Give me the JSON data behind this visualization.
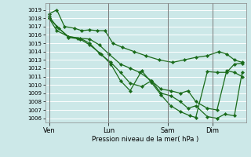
{
  "background_color": "#cce8e8",
  "grid_color": "#ffffff",
  "line_color": "#1a6b1a",
  "marker_color": "#1a6b1a",
  "xlabel": "Pression niveau de la mer( hPa )",
  "ylim": [
    1005.5,
    1019.8
  ],
  "yticks": [
    1006,
    1007,
    1008,
    1009,
    1010,
    1011,
    1012,
    1013,
    1014,
    1015,
    1016,
    1017,
    1018,
    1019
  ],
  "day_labels": [
    "Ven",
    "Lun",
    "Sam",
    "Dim"
  ],
  "day_positions": [
    0.0,
    0.308,
    0.615,
    0.846
  ],
  "vline_color": "#666666",
  "series": [
    {
      "x": [
        0.0,
        0.04,
        0.08,
        0.13,
        0.17,
        0.21,
        0.25,
        0.29,
        0.33,
        0.38,
        0.44,
        0.5,
        0.57,
        0.64,
        0.7,
        0.76,
        0.82,
        0.88,
        0.92,
        0.96,
        1.0
      ],
      "y": [
        1018.5,
        1019.0,
        1017.0,
        1016.8,
        1016.5,
        1016.6,
        1016.5,
        1016.5,
        1015.0,
        1014.5,
        1014.0,
        1013.5,
        1013.0,
        1012.7,
        1013.0,
        1013.3,
        1013.5,
        1014.0,
        1013.7,
        1013.0,
        1012.7
      ]
    },
    {
      "x": [
        0.0,
        0.04,
        0.1,
        0.15,
        0.21,
        0.26,
        0.31,
        0.37,
        0.42,
        0.47,
        0.53,
        0.58,
        0.63,
        0.68,
        0.72,
        0.76,
        0.82,
        0.87,
        0.92,
        0.96,
        1.0
      ],
      "y": [
        1018.2,
        1017.0,
        1015.8,
        1015.6,
        1015.5,
        1014.8,
        1013.7,
        1012.5,
        1012.0,
        1011.5,
        1010.5,
        1009.5,
        1009.3,
        1009.0,
        1009.3,
        1008.0,
        1007.2,
        1007.0,
        1011.7,
        1011.5,
        1011.0
      ]
    },
    {
      "x": [
        0.0,
        0.04,
        0.1,
        0.16,
        0.21,
        0.26,
        0.32,
        0.37,
        0.42,
        0.48,
        0.53,
        0.58,
        0.63,
        0.68,
        0.72,
        0.76,
        0.82,
        0.87,
        0.91,
        0.96,
        1.0
      ],
      "y": [
        1018.0,
        1016.5,
        1015.8,
        1015.6,
        1015.0,
        1013.8,
        1012.7,
        1011.5,
        1010.2,
        1009.8,
        1010.5,
        1009.0,
        1008.7,
        1008.0,
        1007.2,
        1007.5,
        1006.2,
        1006.0,
        1006.5,
        1006.3,
        1011.5
      ]
    },
    {
      "x": [
        0.0,
        0.05,
        0.1,
        0.16,
        0.21,
        0.27,
        0.32,
        0.37,
        0.42,
        0.48,
        0.53,
        0.58,
        0.63,
        0.68,
        0.73,
        0.76,
        0.82,
        0.87,
        0.92,
        0.96,
        1.0
      ],
      "y": [
        1018.0,
        1016.8,
        1015.7,
        1015.5,
        1014.8,
        1013.7,
        1012.5,
        1010.5,
        1009.3,
        1011.7,
        1010.3,
        1008.8,
        1007.5,
        1006.8,
        1006.3,
        1006.1,
        1011.6,
        1011.5,
        1011.5,
        1012.5,
        1012.6
      ]
    }
  ]
}
